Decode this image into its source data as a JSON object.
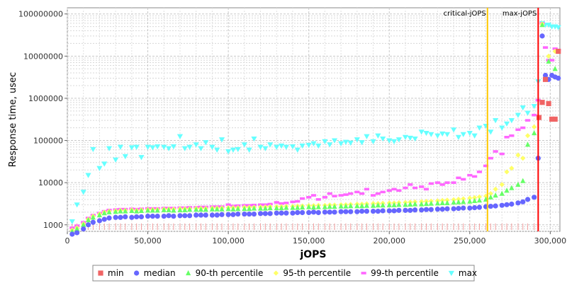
{
  "chart_data": {
    "type": "scatter",
    "xlabel": "jOPS",
    "ylabel": "Response time, usec",
    "xlim": [
      0,
      306000
    ],
    "ylim": [
      700,
      140000000
    ],
    "y_scale": "log",
    "grid": true,
    "legend_placement": "bottom",
    "x_ticks": [
      {
        "value": 0,
        "label": "0"
      },
      {
        "value": 50000,
        "label": "50,000"
      },
      {
        "value": 100000,
        "label": "100,000"
      },
      {
        "value": 150000,
        "label": "150,000"
      },
      {
        "value": 200000,
        "label": "200,000"
      },
      {
        "value": 250000,
        "label": "250,000"
      },
      {
        "value": 300000,
        "label": "300,000"
      }
    ],
    "y_ticks": [
      {
        "value": 1000,
        "label": "1000"
      },
      {
        "value": 10000,
        "label": "10000"
      },
      {
        "value": 100000,
        "label": "100000"
      },
      {
        "value": 1000000,
        "label": "1000000"
      },
      {
        "value": 10000000,
        "label": "10000000"
      },
      {
        "value": 100000000,
        "label": "100000000"
      }
    ],
    "markers": [
      {
        "name": "critical-jOPS",
        "x": 261000,
        "color": "#ffc800"
      },
      {
        "name": "max-jOPS",
        "x": 292500,
        "color": "#ff0000"
      }
    ],
    "series": [
      {
        "name": "min",
        "color": "#f06464",
        "shape": "square",
        "x": [
          293000,
          295000,
          297000,
          299000,
          301000,
          303000,
          305000
        ],
        "y": [
          350000,
          800000,
          2800000,
          750000,
          320000,
          320000,
          13000000
        ]
      },
      {
        "name": "median",
        "color": "#6666ff",
        "shape": "circle",
        "x": [
          3000,
          6000,
          10000,
          13000,
          16000,
          20000,
          23000,
          26000,
          30000,
          33000,
          36000,
          40000,
          43000,
          46000,
          50000,
          53000,
          56000,
          60000,
          63000,
          66000,
          70000,
          73000,
          76000,
          80000,
          83000,
          86000,
          90000,
          93000,
          96000,
          100000,
          103000,
          106000,
          110000,
          113000,
          116000,
          120000,
          123000,
          126000,
          130000,
          133000,
          136000,
          140000,
          143000,
          146000,
          150000,
          153000,
          156000,
          160000,
          163000,
          166000,
          170000,
          173000,
          176000,
          180000,
          183000,
          186000,
          190000,
          193000,
          196000,
          200000,
          203000,
          206000,
          210000,
          213000,
          216000,
          220000,
          223000,
          226000,
          230000,
          233000,
          236000,
          240000,
          243000,
          246000,
          250000,
          253000,
          256000,
          260000,
          263000,
          266000,
          270000,
          273000,
          276000,
          280000,
          283000,
          286000,
          290000,
          292500,
          295000,
          297000,
          299000,
          301000,
          303000,
          305000
        ],
        "y": [
          600,
          650,
          800,
          1000,
          1150,
          1250,
          1350,
          1450,
          1500,
          1500,
          1550,
          1500,
          1550,
          1550,
          1600,
          1600,
          1600,
          1600,
          1650,
          1600,
          1650,
          1650,
          1650,
          1700,
          1700,
          1700,
          1700,
          1700,
          1750,
          1750,
          1750,
          1800,
          1800,
          1800,
          1800,
          1850,
          1850,
          1850,
          1900,
          1900,
          1900,
          1900,
          1950,
          1950,
          1950,
          2000,
          1950,
          2000,
          2000,
          2000,
          2050,
          2050,
          2050,
          2050,
          2100,
          2100,
          2100,
          2100,
          2150,
          2150,
          2150,
          2200,
          2200,
          2200,
          2250,
          2250,
          2300,
          2300,
          2350,
          2350,
          2400,
          2400,
          2450,
          2500,
          2500,
          2550,
          2600,
          2700,
          2750,
          2800,
          2900,
          3000,
          3100,
          3300,
          3500,
          4000,
          4500,
          38000,
          30000000,
          3500000,
          2800000,
          3500000,
          3200000,
          3000000
        ]
      },
      {
        "name": "90-th percentile",
        "color": "#66ff66",
        "shape": "triangle-up",
        "x": [
          3000,
          6000,
          10000,
          13000,
          16000,
          20000,
          23000,
          26000,
          30000,
          33000,
          36000,
          40000,
          43000,
          46000,
          50000,
          53000,
          56000,
          60000,
          63000,
          66000,
          70000,
          73000,
          76000,
          80000,
          83000,
          86000,
          90000,
          93000,
          96000,
          100000,
          103000,
          106000,
          110000,
          113000,
          116000,
          120000,
          123000,
          126000,
          130000,
          133000,
          136000,
          140000,
          143000,
          146000,
          150000,
          153000,
          156000,
          160000,
          163000,
          166000,
          170000,
          173000,
          176000,
          180000,
          183000,
          186000,
          190000,
          193000,
          196000,
          200000,
          203000,
          206000,
          210000,
          213000,
          216000,
          220000,
          223000,
          226000,
          230000,
          233000,
          236000,
          240000,
          243000,
          246000,
          250000,
          253000,
          256000,
          260000,
          263000,
          266000,
          270000,
          273000,
          276000,
          280000,
          283000,
          286000,
          290000,
          295000,
          299000,
          303000
        ],
        "y": [
          700,
          800,
          1000,
          1300,
          1500,
          1700,
          1900,
          2000,
          2050,
          2100,
          2100,
          2150,
          2100,
          2150,
          2200,
          2200,
          2200,
          2250,
          2250,
          2200,
          2250,
          2250,
          2300,
          2300,
          2300,
          2300,
          2350,
          2350,
          2350,
          2400,
          2350,
          2400,
          2400,
          2400,
          2450,
          2450,
          2450,
          2500,
          2500,
          2500,
          2550,
          2550,
          2550,
          2600,
          2650,
          2600,
          2650,
          2650,
          2700,
          2700,
          2750,
          2750,
          2800,
          2800,
          2800,
          2850,
          2850,
          2900,
          2900,
          2950,
          2950,
          3000,
          3000,
          3050,
          3100,
          3100,
          3150,
          3200,
          3250,
          3300,
          3300,
          3400,
          3450,
          3500,
          3600,
          3700,
          3800,
          4000,
          4500,
          5000,
          5500,
          6500,
          7500,
          9000,
          11000,
          80000,
          150000,
          55000000,
          7500000,
          5000000
        ]
      },
      {
        "name": "95-th percentile",
        "color": "#ffff66",
        "shape": "diamond",
        "x": [
          3000,
          6000,
          10000,
          13000,
          16000,
          20000,
          23000,
          26000,
          30000,
          33000,
          36000,
          40000,
          43000,
          46000,
          50000,
          53000,
          56000,
          60000,
          63000,
          66000,
          70000,
          73000,
          76000,
          80000,
          83000,
          86000,
          90000,
          93000,
          96000,
          100000,
          103000,
          106000,
          110000,
          113000,
          116000,
          120000,
          123000,
          126000,
          130000,
          133000,
          136000,
          140000,
          143000,
          146000,
          150000,
          153000,
          156000,
          160000,
          163000,
          166000,
          170000,
          173000,
          176000,
          180000,
          183000,
          186000,
          190000,
          193000,
          196000,
          200000,
          203000,
          206000,
          210000,
          213000,
          216000,
          220000,
          223000,
          226000,
          230000,
          233000,
          236000,
          240000,
          243000,
          246000,
          250000,
          253000,
          256000,
          260000,
          263000,
          266000,
          270000,
          273000,
          276000,
          280000,
          283000,
          286000,
          290000,
          295000,
          299000,
          303000
        ],
        "y": [
          750,
          850,
          1050,
          1350,
          1600,
          1800,
          2000,
          2100,
          2150,
          2200,
          2200,
          2250,
          2200,
          2250,
          2300,
          2300,
          2300,
          2350,
          2350,
          2350,
          2400,
          2400,
          2400,
          2450,
          2450,
          2450,
          2500,
          2500,
          2500,
          2550,
          2550,
          2550,
          2600,
          2600,
          2600,
          2650,
          2650,
          2700,
          2700,
          2700,
          2750,
          2750,
          2800,
          2800,
          2850,
          2850,
          2900,
          2900,
          2950,
          2950,
          3000,
          3000,
          3050,
          3100,
          3100,
          3150,
          3200,
          3200,
          3250,
          3300,
          3300,
          3350,
          3400,
          3450,
          3500,
          3550,
          3600,
          3650,
          3700,
          3800,
          3850,
          3950,
          4050,
          4150,
          4300,
          4400,
          4600,
          4800,
          5500,
          7000,
          9000,
          18000,
          22000,
          45000,
          38000,
          130000,
          210000,
          58000000,
          10000000,
          13000000
        ]
      },
      {
        "name": "99-th percentile",
        "color": "#ff66ff",
        "shape": "dash",
        "x": [
          3000,
          6000,
          10000,
          13000,
          16000,
          20000,
          23000,
          26000,
          30000,
          33000,
          36000,
          40000,
          43000,
          46000,
          50000,
          53000,
          56000,
          60000,
          63000,
          66000,
          70000,
          73000,
          76000,
          80000,
          83000,
          86000,
          90000,
          93000,
          96000,
          100000,
          103000,
          106000,
          110000,
          113000,
          116000,
          120000,
          123000,
          126000,
          130000,
          133000,
          136000,
          140000,
          143000,
          146000,
          150000,
          153000,
          156000,
          160000,
          163000,
          166000,
          170000,
          173000,
          176000,
          180000,
          183000,
          186000,
          190000,
          193000,
          196000,
          200000,
          203000,
          206000,
          210000,
          213000,
          216000,
          220000,
          223000,
          226000,
          230000,
          233000,
          236000,
          240000,
          243000,
          246000,
          250000,
          253000,
          256000,
          260000,
          263000,
          266000,
          270000,
          273000,
          276000,
          280000,
          283000,
          286000,
          290000,
          292500,
          295000,
          297000,
          299000,
          301000,
          303000,
          305000
        ],
        "y": [
          850,
          950,
          1150,
          1450,
          1700,
          1900,
          2100,
          2250,
          2300,
          2350,
          2350,
          2400,
          2350,
          2400,
          2450,
          2450,
          2450,
          2500,
          2500,
          2500,
          2550,
          2550,
          2600,
          2600,
          2650,
          2650,
          2700,
          2700,
          2700,
          3000,
          2800,
          2850,
          2900,
          2900,
          2950,
          3000,
          3000,
          3100,
          3400,
          3200,
          3300,
          3500,
          3600,
          4200,
          4500,
          5000,
          4000,
          4500,
          5500,
          4800,
          5000,
          5200,
          5500,
          6000,
          5500,
          7000,
          5000,
          5500,
          6000,
          6500,
          7000,
          6500,
          7500,
          9000,
          7500,
          8000,
          7000,
          9500,
          10000,
          9000,
          10000,
          10000,
          13000,
          12000,
          15000,
          14000,
          18000,
          25000,
          38000,
          55000,
          48000,
          120000,
          130000,
          180000,
          200000,
          300000,
          400000,
          900000,
          60000000,
          16000000,
          8000000,
          8000000,
          15000000,
          14000000
        ]
      },
      {
        "name": "max",
        "color": "#66ffff",
        "shape": "triangle-down",
        "x": [
          3000,
          6000,
          10000,
          13000,
          16000,
          20000,
          23000,
          26000,
          30000,
          33000,
          36000,
          40000,
          43000,
          46000,
          50000,
          53000,
          56000,
          60000,
          63000,
          66000,
          70000,
          73000,
          76000,
          80000,
          83000,
          86000,
          90000,
          93000,
          96000,
          100000,
          103000,
          106000,
          110000,
          113000,
          116000,
          120000,
          123000,
          126000,
          130000,
          133000,
          136000,
          140000,
          143000,
          146000,
          150000,
          153000,
          156000,
          160000,
          163000,
          166000,
          170000,
          173000,
          176000,
          180000,
          183000,
          186000,
          190000,
          193000,
          196000,
          200000,
          203000,
          206000,
          210000,
          213000,
          216000,
          220000,
          223000,
          226000,
          230000,
          233000,
          236000,
          240000,
          243000,
          246000,
          250000,
          253000,
          256000,
          260000,
          263000,
          266000,
          270000,
          273000,
          276000,
          280000,
          283000,
          286000,
          290000,
          292500,
          295000,
          297000,
          299000,
          301000,
          303000,
          305000
        ],
        "y": [
          1200,
          3000,
          6000,
          15000,
          62000,
          22000,
          28000,
          65000,
          35000,
          70000,
          42000,
          68000,
          70000,
          40000,
          70000,
          68000,
          72000,
          70000,
          65000,
          72000,
          125000,
          65000,
          70000,
          80000,
          65000,
          90000,
          70000,
          60000,
          105000,
          55000,
          60000,
          62000,
          80000,
          60000,
          110000,
          70000,
          65000,
          80000,
          70000,
          75000,
          70000,
          72000,
          60000,
          75000,
          78000,
          85000,
          75000,
          95000,
          80000,
          100000,
          85000,
          92000,
          88000,
          105000,
          90000,
          125000,
          95000,
          130000,
          110000,
          100000,
          95000,
          105000,
          120000,
          115000,
          110000,
          160000,
          150000,
          140000,
          130000,
          145000,
          140000,
          180000,
          120000,
          140000,
          150000,
          130000,
          200000,
          220000,
          160000,
          300000,
          200000,
          250000,
          300000,
          400000,
          600000,
          450000,
          650000,
          2500000,
          60000000,
          55000000,
          55000000,
          50000000,
          50000000,
          48000000
        ]
      }
    ]
  }
}
